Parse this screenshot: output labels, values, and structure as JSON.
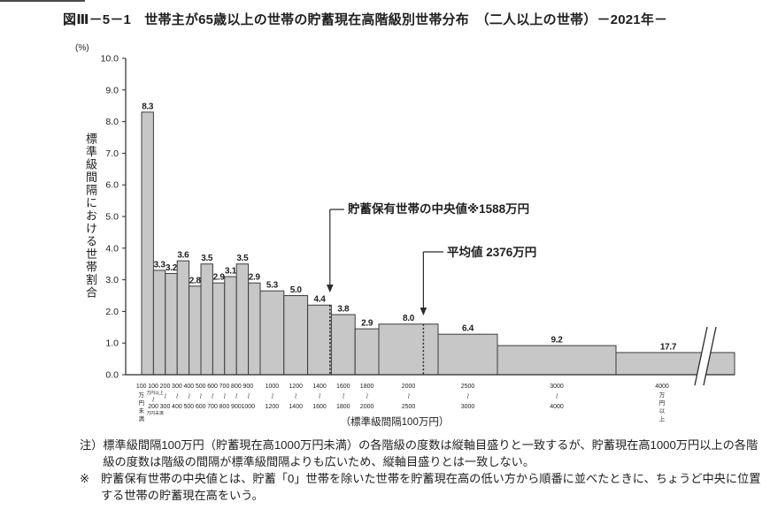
{
  "page": {
    "title": "図Ⅲ－5－1　世帯主が65歳以上の世帯の貯蓄現在高階級別世帯分布　（二人以上の世帯）－2021年－",
    "notes": [
      {
        "marker": "注）",
        "text": "標準級間隔100万円（貯蓄現在高1000万円未満）の各階級の度数は縦軸目盛りと一致するが、貯蓄現在高1000万円以上の各階級の度数は階級の間隔が標準級間隔よりも広いため、縦軸目盛りとは一致しない。"
      },
      {
        "marker": "※",
        "text": "貯蓄保有世帯の中央値とは、貯蓄「0」世帯を除いた世帯を貯蓄現在高の低い方から順番に並べたときに、ちょうど中央に位置する世帯の貯蓄現在高をいう。"
      }
    ]
  },
  "chart_data": {
    "type": "bar",
    "title": "世帯主が65歳以上の世帯の貯蓄現在高階級別世帯分布（二人以上の世帯）2021年",
    "unit_label": "(%)",
    "ylabel": "標準級間隔における世帯割合",
    "x_caption": "（標準級間隔100万円）",
    "ylim": [
      0,
      10
    ],
    "ytick_step": 1.0,
    "grid": false,
    "bars": [
      {
        "range": "100万円未満",
        "value": 8.3,
        "interval_units": 1,
        "display_height": 8.3,
        "label": {
          "type": "vertical",
          "lines": [
            "100",
            "万",
            "円",
            "未",
            "満"
          ]
        }
      },
      {
        "range": "100万円以上200万円未満",
        "value": 3.3,
        "interval_units": 1,
        "display_height": 3.3,
        "label": {
          "type": "range_full",
          "top": "100",
          "top_sub": "万円以上",
          "bottom": "200",
          "bottom_sub": "万円未満"
        }
      },
      {
        "range": "200〜300",
        "value": 3.2,
        "interval_units": 1,
        "display_height": 3.2,
        "label": {
          "type": "range",
          "top": "200",
          "bottom": "300"
        }
      },
      {
        "range": "300〜400",
        "value": 3.6,
        "interval_units": 1,
        "display_height": 3.6,
        "label": {
          "type": "range",
          "top": "300",
          "bottom": "400"
        }
      },
      {
        "range": "400〜500",
        "value": 2.8,
        "interval_units": 1,
        "display_height": 2.8,
        "label": {
          "type": "range",
          "top": "400",
          "bottom": "500"
        }
      },
      {
        "range": "500〜600",
        "value": 3.5,
        "interval_units": 1,
        "display_height": 3.5,
        "label": {
          "type": "range",
          "top": "500",
          "bottom": "600"
        }
      },
      {
        "range": "600〜700",
        "value": 2.9,
        "interval_units": 1,
        "display_height": 2.9,
        "label": {
          "type": "range",
          "top": "600",
          "bottom": "700"
        }
      },
      {
        "range": "700〜800",
        "value": 3.1,
        "interval_units": 1,
        "display_height": 3.1,
        "label": {
          "type": "range",
          "top": "700",
          "bottom": "800"
        }
      },
      {
        "range": "800〜900",
        "value": 3.5,
        "interval_units": 1,
        "display_height": 3.5,
        "label": {
          "type": "range",
          "top": "800",
          "bottom": "900"
        }
      },
      {
        "range": "900〜1000",
        "value": 2.9,
        "interval_units": 1,
        "display_height": 2.9,
        "label": {
          "type": "range",
          "top": "900",
          "bottom": "1000"
        }
      },
      {
        "range": "1000〜1200",
        "value": 5.3,
        "interval_units": 2,
        "display_height": 2.65,
        "label": {
          "type": "range",
          "top": "1000",
          "bottom": "1200"
        }
      },
      {
        "range": "1200〜1400",
        "value": 5.0,
        "interval_units": 2,
        "display_height": 2.5,
        "label": {
          "type": "range",
          "top": "1200",
          "bottom": "1400"
        }
      },
      {
        "range": "1400〜1600",
        "value": 4.4,
        "interval_units": 2,
        "display_height": 2.2,
        "label": {
          "type": "range",
          "top": "1400",
          "bottom": "1600"
        }
      },
      {
        "range": "1600〜1800",
        "value": 3.8,
        "interval_units": 2,
        "display_height": 1.9,
        "label": {
          "type": "range",
          "top": "1600",
          "bottom": "1800"
        }
      },
      {
        "range": "1800〜2000",
        "value": 2.9,
        "interval_units": 2,
        "display_height": 1.45,
        "label": {
          "type": "range",
          "top": "1800",
          "bottom": "2000"
        }
      },
      {
        "range": "2000〜2500",
        "value": 8.0,
        "interval_units": 5,
        "display_height": 1.6,
        "label": {
          "type": "range",
          "top": "2000",
          "bottom": "2500"
        }
      },
      {
        "range": "2500〜3000",
        "value": 6.4,
        "interval_units": 5,
        "display_height": 1.28,
        "label": {
          "type": "range",
          "top": "2500",
          "bottom": "3000"
        }
      },
      {
        "range": "3000〜4000",
        "value": 9.2,
        "interval_units": 10,
        "display_height": 0.92,
        "label": {
          "type": "range",
          "top": "3000",
          "bottom": "4000"
        }
      },
      {
        "range": "4000万円以上",
        "value": 17.7,
        "interval_units": 0,
        "display_height": 0.7,
        "open_ended": true,
        "break_mark": true,
        "label": {
          "type": "vertical",
          "lines": [
            "4000",
            "万",
            "円",
            "以",
            "上"
          ]
        }
      }
    ],
    "annotations": {
      "median": {
        "label": "貯蓄保有世帯の中央値※1588万円",
        "value_man_yen": 1588
      },
      "mean": {
        "label": "平均値 2376万円",
        "value_man_yen": 2376
      }
    },
    "colors": {
      "bar_fill": "#c7c7c7",
      "bar_border": "#3c3c3c",
      "axis": "#2b2b2b",
      "text": "#1f1f1f"
    }
  }
}
